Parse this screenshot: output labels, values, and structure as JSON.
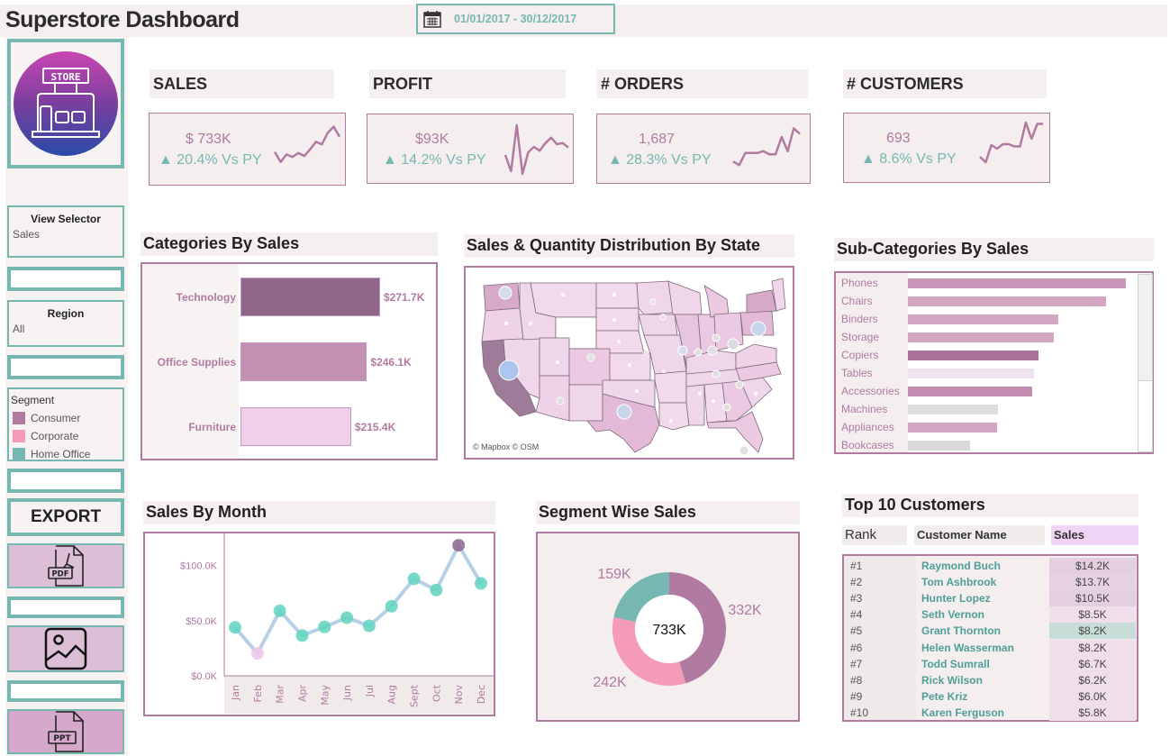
{
  "header": {
    "title": "Superstore Dashboard",
    "date_range": "01/01/2017 - 30/12/2017",
    "calendar_icon": "calendar-icon"
  },
  "sidebar": {
    "logo_text": "STORE",
    "view_selector": {
      "label": "View Selector",
      "value": "Sales"
    },
    "region": {
      "label": "Region",
      "value": "All"
    },
    "segment_legend": {
      "label": "Segment",
      "items": [
        {
          "label": "Consumer",
          "color": "#b07aa1"
        },
        {
          "label": "Corporate",
          "color": "#f49bb8"
        },
        {
          "label": "Home Office",
          "color": "#76b7b2"
        }
      ]
    },
    "export": {
      "label": "EXPORT",
      "pdf_label": "PDF",
      "ppt_label": "PPT"
    }
  },
  "kpis": [
    {
      "title": "SALES",
      "value": "$ 733K",
      "change": "▲ 20.4% Vs PY",
      "trend": [
        40,
        20,
        35,
        30,
        38,
        32,
        45,
        60,
        55,
        78,
        90,
        70
      ]
    },
    {
      "title": "PROFIT",
      "value": "$93K",
      "change": "▲ 14.2% Vs PY",
      "trend": [
        40,
        10,
        95,
        5,
        45,
        55,
        48,
        62,
        72,
        60,
        62,
        54
      ]
    },
    {
      "title": "# ORDERS",
      "value": "1,687",
      "change": "▲ 28.3% Vs PY",
      "trend": [
        18,
        10,
        38,
        38,
        38,
        42,
        35,
        35,
        75,
        42,
        95,
        82
      ]
    },
    {
      "title": "# CUSTOMERS",
      "value": "693",
      "change": "▲ 8.6% Vs PY",
      "trend": [
        22,
        10,
        48,
        40,
        50,
        50,
        45,
        45,
        98,
        62,
        95,
        95
      ]
    }
  ],
  "categories_by_sales": {
    "title": "Categories By Sales",
    "chart_data": {
      "type": "bar",
      "orientation": "horizontal",
      "categories": [
        "Technology",
        "Office Supplies",
        "Furniture"
      ],
      "values": [
        271.7,
        246.1,
        215.4
      ],
      "labels": [
        "$271.7K",
        "$246.1K",
        "$215.4K"
      ],
      "colors": [
        "#8f6789",
        "#c290b1",
        "#f0d0e8"
      ],
      "unit": "$K"
    }
  },
  "map": {
    "title": "Sales & Quantity Distribution By State",
    "attribution": "© Mapbox © OSM"
  },
  "sub_categories": {
    "title": "Sub-Categories By Sales",
    "chart_data": {
      "type": "bar",
      "orientation": "horizontal",
      "categories": [
        "Phones",
        "Chairs",
        "Binders",
        "Storage",
        "Copiers",
        "Tables",
        "Accessories",
        "Machines",
        "Appliances",
        "Bookcases"
      ],
      "values": [
        105.3,
        95.6,
        72.8,
        70.5,
        62.9,
        60.9,
        59.9,
        43.5,
        42.9,
        30.0
      ],
      "colors": [
        "#c995b8",
        "#d4a6c3",
        "#d4a6c3",
        "#d4a6c3",
        "#ac7198",
        "#efe2ef",
        "#c48bb0",
        "#e0dde0",
        "#d4a6c3",
        "#dbd8db"
      ],
      "unit": "$K"
    }
  },
  "sales_by_month": {
    "title": "Sales By Month",
    "chart_data": {
      "type": "line",
      "x": [
        "Jan",
        "Feb",
        "Mar",
        "Apr",
        "May",
        "Jun",
        "Jul",
        "Aug",
        "Sept",
        "Oct",
        "Nov",
        "Dec"
      ],
      "values": [
        43.9,
        20.3,
        58.9,
        36.5,
        44.3,
        52.7,
        45.3,
        63.1,
        87.9,
        77.8,
        118.4,
        83.8
      ],
      "unit": "$K",
      "yticks": [
        "$0.0K",
        "$50.0K",
        "$100.0K"
      ],
      "ytick_values": [
        0,
        50,
        100
      ],
      "ylim": [
        0,
        125
      ],
      "highlight": {
        "max": "Nov",
        "min": "Feb"
      },
      "colors": {
        "line": "#a9c8e0",
        "point": "#5fd4bf",
        "max_point": "#8b6690",
        "min_point": "#efc6e6"
      }
    }
  },
  "segment_sales": {
    "title": "Segment Wise Sales",
    "chart_data": {
      "type": "pie",
      "donut": true,
      "center_label": "733K",
      "slices": [
        {
          "name": "Consumer",
          "value": 332,
          "label": "332K",
          "color": "#b07aa1"
        },
        {
          "name": "Corporate",
          "value": 242,
          "label": "242K",
          "color": "#f49bb8"
        },
        {
          "name": "Home Office",
          "value": 159,
          "label": "159K",
          "color": "#76b7b2"
        }
      ]
    }
  },
  "top_customers": {
    "title": "Top 10 Customers",
    "columns": [
      "Rank",
      "Customer Name",
      "Sales"
    ],
    "rows": [
      {
        "rank": "#1",
        "name": "Raymond Buch",
        "sales": "$14.2K",
        "shade": "#e3cfe0"
      },
      {
        "rank": "#2",
        "name": "Tom Ashbrook",
        "sales": "$13.7K",
        "shade": "#e6d2e2"
      },
      {
        "rank": "#3",
        "name": "Hunter Lopez",
        "sales": "$10.5K",
        "shade": "#e3cfe0"
      },
      {
        "rank": "#4",
        "name": "Seth Vernon",
        "sales": "$8.5K",
        "shade": "#f0dfea"
      },
      {
        "rank": "#5",
        "name": "Grant Thornton",
        "sales": "$8.2K",
        "shade": "#c9ddd8"
      },
      {
        "rank": "#6",
        "name": "Helen Wasserman",
        "sales": "$8.2K",
        "shade": "#f0dfea"
      },
      {
        "rank": "#7",
        "name": "Todd Sumrall",
        "sales": "$6.7K",
        "shade": "#f0dfea"
      },
      {
        "rank": "#8",
        "name": "Rick Wilson",
        "sales": "$6.2K",
        "shade": "#f0dfea"
      },
      {
        "rank": "#9",
        "name": "Pete Kriz",
        "sales": "$6.0K",
        "shade": "#f0dfea"
      },
      {
        "rank": "#10",
        "name": "Karen Ferguson",
        "sales": "$5.8K",
        "shade": "#f0dfea"
      }
    ]
  },
  "colors": {
    "accent_teal": "#76b7b2",
    "accent_mauve": "#b07aa1",
    "panel_bg": "#f5efef"
  }
}
